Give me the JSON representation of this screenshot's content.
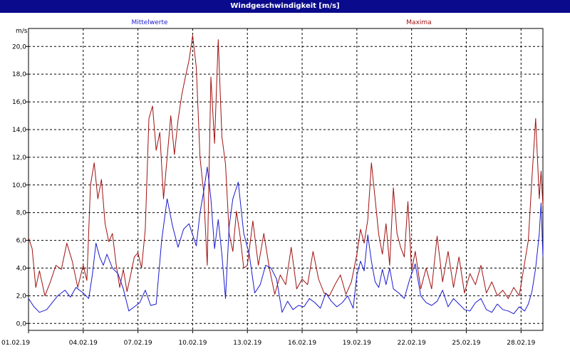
{
  "window": {
    "title": "Windgeschwindigkeit [m/s]"
  },
  "colors": {
    "title_bar": "#0a0a8c",
    "mean": "#1a1ad0",
    "max": "#a01010",
    "grid": "#000000"
  },
  "chart_data": {
    "type": "line",
    "title": "Windgeschwindigkeit [m/s]",
    "ylabel": "m/s",
    "ylim": [
      -0.5,
      21.3
    ],
    "yticks": [
      0,
      2,
      4,
      6,
      8,
      10,
      12,
      14,
      16,
      18,
      20
    ],
    "ytick_labels": [
      "0,0",
      "2,0",
      "4,0",
      "6,0",
      "8,0",
      "10,0",
      "12,0",
      "14,0",
      "16,0",
      "18,0",
      "20,0"
    ],
    "xlim": [
      0,
      28.2
    ],
    "xticks": [
      0,
      3,
      6,
      9,
      12,
      15,
      18,
      21,
      24,
      27
    ],
    "xtick_labels": [
      "01.02.19",
      "04.02.19",
      "07.02.19",
      "10.02.19",
      "13.02.19",
      "16.02.19",
      "19.02.19",
      "22.02.19",
      "25.02.19",
      "28.02.19"
    ],
    "grid": true,
    "series": [
      {
        "name": "Mittelwerte",
        "x": [
          0,
          0.3,
          0.6,
          1.0,
          1.3,
          1.6,
          2.0,
          2.3,
          2.6,
          3.0,
          3.3,
          3.5,
          3.7,
          3.9,
          4.1,
          4.3,
          4.6,
          4.9,
          5.2,
          5.5,
          5.8,
          6.1,
          6.4,
          6.7,
          7.0,
          7.3,
          7.6,
          7.9,
          8.2,
          8.5,
          8.8,
          9.0,
          9.2,
          9.4,
          9.6,
          9.8,
          10.0,
          10.2,
          10.4,
          10.6,
          10.8,
          11.0,
          11.2,
          11.5,
          11.8,
          12.1,
          12.4,
          12.7,
          13.0,
          13.3,
          13.6,
          13.9,
          14.2,
          14.5,
          14.8,
          15.1,
          15.4,
          15.7,
          16.0,
          16.3,
          16.6,
          16.9,
          17.2,
          17.5,
          17.8,
          18.0,
          18.2,
          18.4,
          18.6,
          18.8,
          19.0,
          19.2,
          19.4,
          19.6,
          19.8,
          20.0,
          20.3,
          20.6,
          20.9,
          21.2,
          21.5,
          21.8,
          22.1,
          22.4,
          22.7,
          23.0,
          23.3,
          23.6,
          23.9,
          24.2,
          24.5,
          24.8,
          25.1,
          25.4,
          25.7,
          26.0,
          26.3,
          26.6,
          26.9,
          27.2,
          27.4,
          27.6,
          27.8,
          28.0,
          28.1,
          28.2
        ],
        "values": [
          1.8,
          1.2,
          0.8,
          1.0,
          1.5,
          2.0,
          2.4,
          1.9,
          2.6,
          2.2,
          1.8,
          3.5,
          5.8,
          4.8,
          4.2,
          5.0,
          4.0,
          3.6,
          2.5,
          0.9,
          1.2,
          1.5,
          2.4,
          1.3,
          1.4,
          6.0,
          9.0,
          7.0,
          5.5,
          6.8,
          7.2,
          6.4,
          5.6,
          8.0,
          9.5,
          11.3,
          9.0,
          5.4,
          7.5,
          5.0,
          1.8,
          7.0,
          9.0,
          10.2,
          6.5,
          5.0,
          2.2,
          2.8,
          4.2,
          4.0,
          3.2,
          0.8,
          1.6,
          1.0,
          1.3,
          1.2,
          1.8,
          1.5,
          1.1,
          2.2,
          1.6,
          1.2,
          1.5,
          2.0,
          1.1,
          3.5,
          4.5,
          3.8,
          6.4,
          4.5,
          3.0,
          2.6,
          3.9,
          2.8,
          4.0,
          2.5,
          2.2,
          1.8,
          3.2,
          4.3,
          2.0,
          1.5,
          1.3,
          1.6,
          2.4,
          1.2,
          1.8,
          1.4,
          1.0,
          0.9,
          1.5,
          1.8,
          1.0,
          0.8,
          1.4,
          1.0,
          0.9,
          0.7,
          1.2,
          0.9,
          1.4,
          2.3,
          4.0,
          6.5,
          8.7,
          4.8
        ]
      },
      {
        "name": "Maxima",
        "x": [
          0,
          0.2,
          0.4,
          0.6,
          0.9,
          1.2,
          1.5,
          1.8,
          2.1,
          2.4,
          2.7,
          3.0,
          3.2,
          3.4,
          3.6,
          3.8,
          4.0,
          4.2,
          4.4,
          4.6,
          4.8,
          5.0,
          5.2,
          5.4,
          5.6,
          5.8,
          6.0,
          6.2,
          6.4,
          6.6,
          6.8,
          7.0,
          7.2,
          7.4,
          7.6,
          7.8,
          8.0,
          8.2,
          8.4,
          8.6,
          8.8,
          9.0,
          9.2,
          9.4,
          9.6,
          9.8,
          10.0,
          10.2,
          10.4,
          10.6,
          10.8,
          11.0,
          11.2,
          11.4,
          11.6,
          11.8,
          12.0,
          12.3,
          12.6,
          12.9,
          13.2,
          13.5,
          13.8,
          14.1,
          14.4,
          14.7,
          15.0,
          15.3,
          15.6,
          15.9,
          16.2,
          16.5,
          16.8,
          17.1,
          17.4,
          17.7,
          18.0,
          18.2,
          18.4,
          18.6,
          18.8,
          19.0,
          19.2,
          19.4,
          19.6,
          19.8,
          20.0,
          20.2,
          20.4,
          20.6,
          20.8,
          21.0,
          21.2,
          21.5,
          21.8,
          22.1,
          22.4,
          22.7,
          23.0,
          23.3,
          23.6,
          23.9,
          24.2,
          24.5,
          24.8,
          25.1,
          25.4,
          25.7,
          26.0,
          26.3,
          26.6,
          26.9,
          27.2,
          27.4,
          27.6,
          27.8,
          28.0,
          28.1,
          28.2
        ],
        "values": [
          6.2,
          5.4,
          2.6,
          3.8,
          2.0,
          3.0,
          4.2,
          3.9,
          5.8,
          4.5,
          2.6,
          4.2,
          3.1,
          10.0,
          11.6,
          9.0,
          10.4,
          7.2,
          5.9,
          6.5,
          4.3,
          2.6,
          3.9,
          2.3,
          3.5,
          4.8,
          5.1,
          4.0,
          6.8,
          14.8,
          15.7,
          12.5,
          13.8,
          9.0,
          12.0,
          15.0,
          12.2,
          14.7,
          16.5,
          17.8,
          19.0,
          20.8,
          18.5,
          12.0,
          9.5,
          4.2,
          17.8,
          13.0,
          20.5,
          13.5,
          11.5,
          6.5,
          5.2,
          8.1,
          6.3,
          4.0,
          4.2,
          7.4,
          4.2,
          6.5,
          4.0,
          2.1,
          3.5,
          2.8,
          5.5,
          2.5,
          3.2,
          2.8,
          5.2,
          3.2,
          2.2,
          2.0,
          2.8,
          3.5,
          2.1,
          3.0,
          5.0,
          6.8,
          5.8,
          7.5,
          11.6,
          9.0,
          6.4,
          5.0,
          7.2,
          4.2,
          9.8,
          6.5,
          5.5,
          4.8,
          8.8,
          3.8,
          5.2,
          2.5,
          4.0,
          2.5,
          6.3,
          3.0,
          5.2,
          2.6,
          4.8,
          2.2,
          3.6,
          2.8,
          4.2,
          2.2,
          3.0,
          2.0,
          2.4,
          1.8,
          2.6,
          2.0,
          4.4,
          6.0,
          10.5,
          14.8,
          9.0,
          11.0,
          8.5
        ]
      }
    ]
  }
}
